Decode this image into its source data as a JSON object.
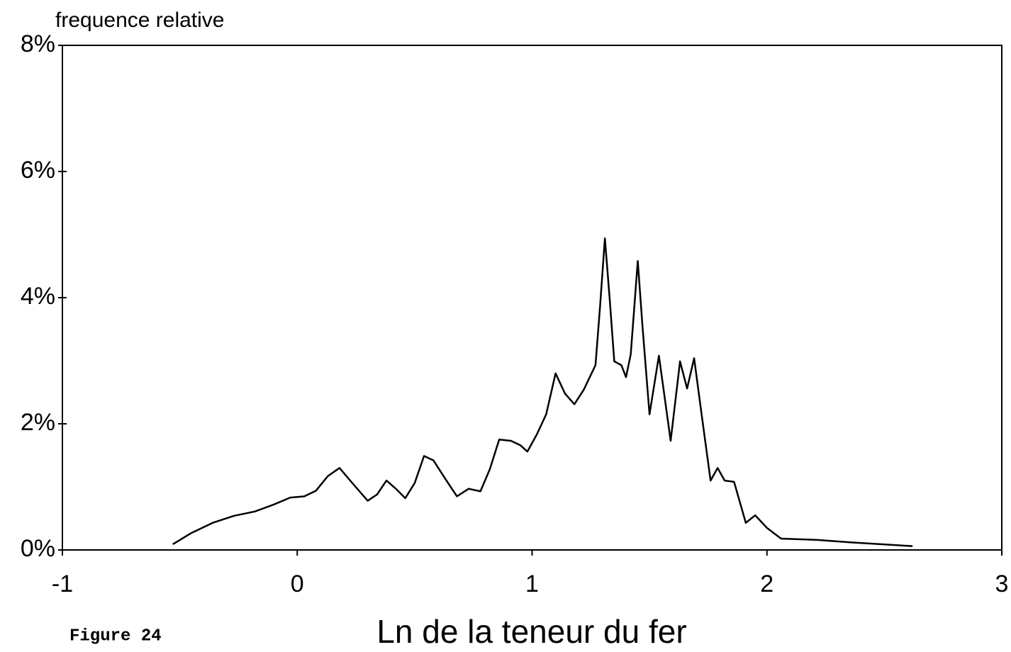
{
  "chart_data": {
    "type": "line",
    "ylabel": "frequence relative",
    "xlabel": "Ln de la teneur du fer",
    "annotation": "Figure 24",
    "xlim": [
      -1,
      3
    ],
    "xticks": [
      -1,
      0,
      1,
      2,
      3
    ],
    "ylim": [
      0,
      8
    ],
    "yticks": [
      {
        "value": 0,
        "label": "0%"
      },
      {
        "value": 2,
        "label": "2%"
      },
      {
        "value": 4,
        "label": "4%"
      },
      {
        "value": 6,
        "label": "6%"
      },
      {
        "value": 8,
        "label": "8%"
      }
    ],
    "x": [
      -0.53,
      -0.45,
      -0.36,
      -0.27,
      -0.18,
      -0.1,
      -0.03,
      0.03,
      0.08,
      0.13,
      0.18,
      0.23,
      0.3,
      0.34,
      0.38,
      0.42,
      0.46,
      0.5,
      0.54,
      0.58,
      0.63,
      0.68,
      0.73,
      0.78,
      0.82,
      0.86,
      0.91,
      0.95,
      0.98,
      1.02,
      1.06,
      1.1,
      1.14,
      1.18,
      1.22,
      1.27,
      1.29,
      1.31,
      1.33,
      1.35,
      1.38,
      1.4,
      1.42,
      1.45,
      1.47,
      1.5,
      1.54,
      1.59,
      1.63,
      1.66,
      1.69,
      1.72,
      1.76,
      1.79,
      1.82,
      1.86,
      1.91,
      1.95,
      2.0,
      2.06,
      2.21,
      2.36,
      2.62
    ],
    "series": [
      {
        "color": "#000000",
        "values": [
          0.09,
          0.27,
          0.43,
          0.54,
          0.61,
          0.72,
          0.83,
          0.85,
          0.94,
          1.17,
          1.3,
          1.08,
          0.78,
          0.88,
          1.1,
          0.97,
          0.82,
          1.06,
          1.49,
          1.42,
          1.13,
          0.85,
          0.97,
          0.93,
          1.28,
          1.75,
          1.73,
          1.66,
          1.56,
          1.83,
          2.15,
          2.8,
          2.48,
          2.31,
          2.54,
          2.93,
          3.89,
          4.94,
          4.0,
          2.99,
          2.93,
          2.74,
          3.1,
          4.58,
          3.55,
          2.15,
          3.08,
          1.73,
          2.99,
          2.56,
          3.04,
          2.2,
          1.1,
          1.3,
          1.1,
          1.08,
          0.43,
          0.55,
          0.35,
          0.18,
          0.16,
          0.12,
          0.06
        ]
      }
    ]
  }
}
